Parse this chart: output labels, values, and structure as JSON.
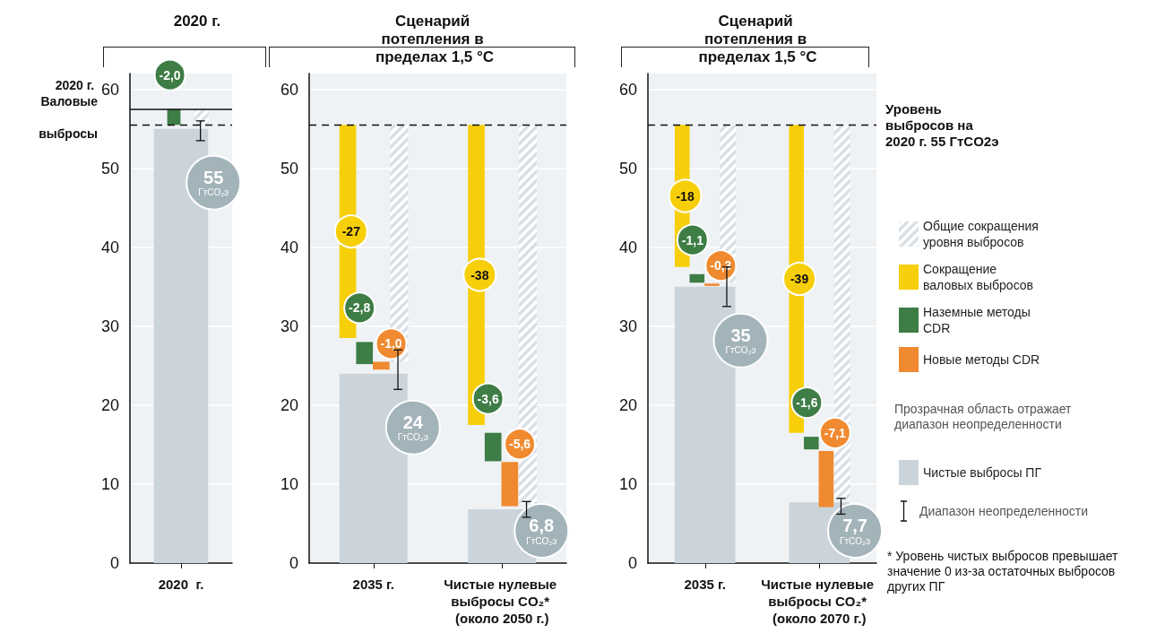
{
  "chart_data": [
    {
      "type": "bar",
      "title": "2020 г.",
      "categories": [
        "2020  г."
      ],
      "ylim": [
        0,
        62
      ],
      "yticks": [
        0,
        10,
        20,
        30,
        40,
        50,
        60
      ],
      "grid": "y",
      "legend": false,
      "series": [
        {
          "color": "#d9e0e5",
          "base": [
            57.5
          ],
          "values": [
            -2
          ]
        },
        {
          "color": "#f6cf0a",
          "base": [
            null
          ],
          "values": [
            null
          ]
        },
        {
          "color": "#3e7d46",
          "base": [
            57.5
          ],
          "values": [
            -2.0
          ],
          "value_labels": [
            "-2,0"
          ]
        },
        {
          "color": "#f08a30",
          "base": [
            null
          ],
          "values": [
            null
          ]
        },
        {
          "color": "#cbd4da",
          "values": [
            55
          ],
          "value_labels": [
            "55 ГтCO₂э"
          ],
          "errors": [
            [
              53.5,
              56
            ]
          ]
        }
      ],
      "ref_lines": [
        {
          "axis": "y",
          "value": 57.5,
          "label": "2020 г. Валовые выбросы",
          "line_style": "solid"
        },
        {
          "axis": "y",
          "value": 55.5,
          "label": null,
          "line_style": "dashed"
        }
      ]
    },
    {
      "type": "bar",
      "title": "Сценарий потепления в пределах 1,5 °C",
      "categories": [
        "2035 г.",
        "Чистые нулевые выбросы CO₂* (около 2050 г.)"
      ],
      "ylim": [
        0,
        62
      ],
      "yticks": [
        0,
        10,
        20,
        30,
        40,
        50,
        60
      ],
      "grid": "y",
      "legend": false,
      "series": [
        {
          "color": "#d9e0e5",
          "base": [
            55.5,
            55.5
          ],
          "values": [
            -30,
            -48
          ]
        },
        {
          "color": "#f6cf0a",
          "base": [
            55.5,
            55.5
          ],
          "values": [
            -27,
            -38
          ],
          "value_labels": [
            "-27",
            "-38"
          ]
        },
        {
          "color": "#3e7d46",
          "base": [
            28,
            16.5
          ],
          "values": [
            -2.8,
            -3.6
          ],
          "value_labels": [
            "-2,8",
            "-3,6"
          ]
        },
        {
          "color": "#f08a30",
          "base": [
            25.5,
            12.8
          ],
          "values": [
            -1.0,
            -5.6
          ],
          "value_labels": [
            "-1,0",
            "-5,6"
          ]
        },
        {
          "color": "#cbd4da",
          "values": [
            24,
            6.8
          ],
          "value_labels": [
            "24 ГтCO₂э",
            "6,8 ГтCO₂э"
          ],
          "errors": [
            [
              22,
              27
            ],
            [
              5.8,
              7.8
            ]
          ]
        }
      ],
      "ref_lines": [
        {
          "axis": "y",
          "value": 55.5,
          "label": null,
          "line_style": "dashed"
        }
      ]
    },
    {
      "type": "bar",
      "title": "Сценарий потепления в пределах 1,5 °C",
      "categories": [
        "2035 г.",
        "Чистые нулевые выбросы CO₂* (около 2070 г.)"
      ],
      "ylim": [
        0,
        62
      ],
      "yticks": [
        0,
        10,
        20,
        30,
        40,
        50,
        60
      ],
      "grid": "y",
      "legend": "right",
      "series": [
        {
          "name": "Общие сокращения уровня выбросов",
          "color": "#d9e0e5",
          "base": [
            55.5,
            55.5
          ],
          "values": [
            -20,
            -47.5
          ]
        },
        {
          "name": "Сокращение валовых выбросов",
          "color": "#f6cf0a",
          "base": [
            55.5,
            55.5
          ],
          "values": [
            -18,
            -39
          ],
          "value_labels": [
            "-18",
            "-39"
          ]
        },
        {
          "name": "Наземные методы CDR",
          "color": "#3e7d46",
          "base": [
            36.6,
            16
          ],
          "values": [
            -1.1,
            -1.6
          ],
          "value_labels": [
            "-1,1",
            "-1,6"
          ]
        },
        {
          "name": "Новые методы CDR",
          "color": "#f08a30",
          "base": [
            35.4,
            14.2
          ],
          "values": [
            -0.3,
            -7.1
          ],
          "value_labels": [
            "-0,3",
            "-7,1"
          ]
        },
        {
          "name": "Чистые выбросы ПГ",
          "color": "#cbd4da",
          "values": [
            35,
            7.7
          ],
          "value_labels": [
            "35 ГтCO₂э",
            "7,7 ГтCO₂э"
          ],
          "errors": [
            [
              32.5,
              37.5
            ],
            [
              6.2,
              8.2
            ]
          ]
        }
      ],
      "ref_lines": [
        {
          "axis": "y",
          "value": 55.5,
          "label": "Уровень выбросов на 2020 г. 55 ГтCO2э",
          "line_style": "dashed"
        }
      ],
      "annotations": [
        "Прозрачная область отражает диапазон неопределенности",
        "Диапазон неопределенности",
        "* Уровень чистых выбросов превышает значение 0 из-за остаточных выбросов других ПГ"
      ]
    }
  ]
}
